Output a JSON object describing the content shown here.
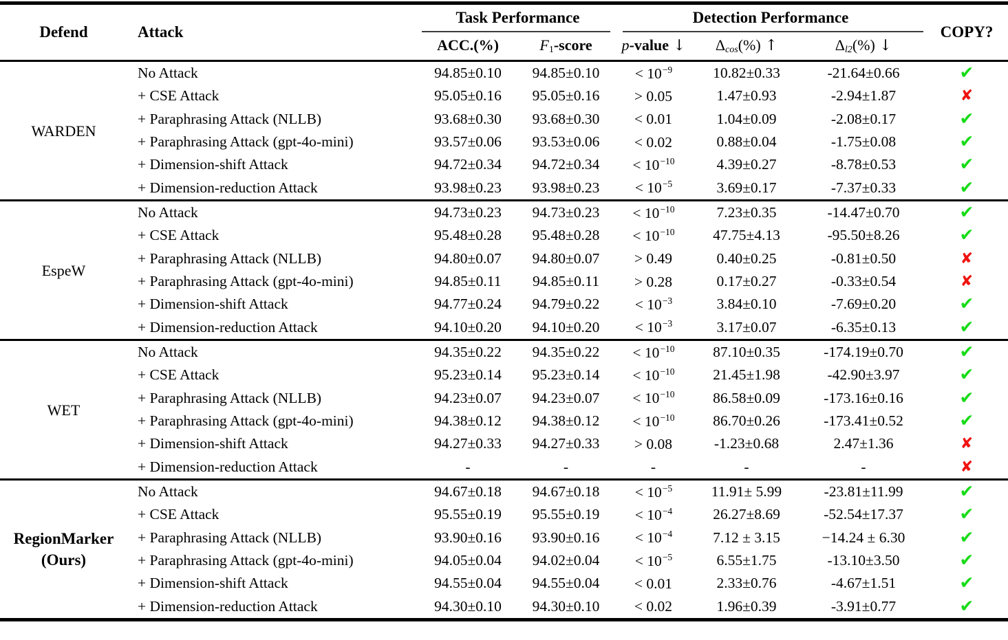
{
  "header": {
    "defend": "Defend",
    "attack": "Attack",
    "task_performance": "Task Performance",
    "detection_performance": "Detection Performance",
    "copy": "COPY?",
    "acc": "ACC.(%)",
    "f1": {
      "sym": "F",
      "sub": "1",
      "rest": "-score"
    },
    "p": {
      "sym": "p",
      "rest": "-value",
      "arrow": "↓"
    },
    "delta_cos": {
      "sym": "Δ",
      "sub": "cos",
      "rest": "(%)",
      "arrow": "↑"
    },
    "delta_l2": {
      "sym": "Δ",
      "sub": "l2",
      "rest": "(%)",
      "arrow": "↓"
    }
  },
  "symbols": {
    "check": "✔",
    "cross": "✘"
  },
  "colors": {
    "check": "#17db17",
    "cross": "#ef1310"
  },
  "groups": [
    {
      "defend": {
        "lines": [
          "WARDEN"
        ],
        "bold": false
      },
      "rows": [
        {
          "attack": "No Attack",
          "acc": "94.85±0.10",
          "f1": "94.85±0.10",
          "p_base": "< 10",
          "p_exp": "−9",
          "dcos": "10.82±0.33",
          "dl2": "-21.64±0.66",
          "copy": "check"
        },
        {
          "attack": "+ CSE Attack",
          "acc": "95.05±0.16",
          "f1": "95.05±0.16",
          "p_base": "> 0.05",
          "p_exp": "",
          "dcos": "1.47±0.93",
          "dl2": "-2.94±1.87",
          "copy": "cross"
        },
        {
          "attack": "+ Paraphrasing Attack (NLLB)",
          "acc": "93.68±0.30",
          "f1": "93.68±0.30",
          "p_base": "< 0.01",
          "p_exp": "",
          "dcos": "1.04±0.09",
          "dl2": "-2.08±0.17",
          "copy": "check"
        },
        {
          "attack": "+ Paraphrasing Attack (gpt-4o-mini)",
          "acc": "93.57±0.06",
          "f1": "93.53±0.06",
          "p_base": "< 0.02",
          "p_exp": "",
          "dcos": "0.88±0.04",
          "dl2": "-1.75±0.08",
          "copy": "check"
        },
        {
          "attack": "+ Dimension-shift Attack",
          "acc": "94.72±0.34",
          "f1": "94.72±0.34",
          "p_base": "< 10",
          "p_exp": "−10",
          "dcos": "4.39±0.27",
          "dl2": "-8.78±0.53",
          "copy": "check"
        },
        {
          "attack": "+ Dimension-reduction Attack",
          "acc": "93.98±0.23",
          "f1": "93.98±0.23",
          "p_base": "< 10",
          "p_exp": "−5",
          "dcos": "3.69±0.17",
          "dl2": "-7.37±0.33",
          "copy": "check"
        }
      ]
    },
    {
      "defend": {
        "lines": [
          "EspeW"
        ],
        "bold": false
      },
      "rows": [
        {
          "attack": "No Attack",
          "acc": "94.73±0.23",
          "f1": "94.73±0.23",
          "p_base": "< 10",
          "p_exp": "−10",
          "dcos": "7.23±0.35",
          "dl2": "-14.47±0.70",
          "copy": "check"
        },
        {
          "attack": "+ CSE Attack",
          "acc": "95.48±0.28",
          "f1": "95.48±0.28",
          "p_base": "< 10",
          "p_exp": "−10",
          "dcos": "47.75±4.13",
          "dl2": "-95.50±8.26",
          "copy": "check"
        },
        {
          "attack": "+ Paraphrasing Attack (NLLB)",
          "acc": "94.80±0.07",
          "f1": "94.80±0.07",
          "p_base": "> 0.49",
          "p_exp": "",
          "dcos": "0.40±0.25",
          "dl2": "-0.81±0.50",
          "copy": "cross"
        },
        {
          "attack": "+ Paraphrasing Attack (gpt-4o-mini)",
          "acc": "94.85±0.11",
          "f1": "94.85±0.11",
          "p_base": "> 0.28",
          "p_exp": "",
          "dcos": "0.17±0.27",
          "dl2": "-0.33±0.54",
          "copy": "cross"
        },
        {
          "attack": "+ Dimension-shift Attack",
          "acc": "94.77±0.24",
          "f1": "94.79±0.22",
          "p_base": "< 10",
          "p_exp": "−3",
          "dcos": "3.84±0.10",
          "dl2": "-7.69±0.20",
          "copy": "check"
        },
        {
          "attack": "+ Dimension-reduction Attack",
          "acc": "94.10±0.20",
          "f1": "94.10±0.20",
          "p_base": "< 10",
          "p_exp": "−3",
          "dcos": "3.17±0.07",
          "dl2": "-6.35±0.13",
          "copy": "check"
        }
      ]
    },
    {
      "defend": {
        "lines": [
          "WET"
        ],
        "bold": false
      },
      "rows": [
        {
          "attack": "No Attack",
          "acc": "94.35±0.22",
          "f1": "94.35±0.22",
          "p_base": "< 10",
          "p_exp": "−10",
          "dcos": "87.10±0.35",
          "dl2": "-174.19±0.70",
          "copy": "check"
        },
        {
          "attack": "+ CSE Attack",
          "acc": "95.23±0.14",
          "f1": "95.23±0.14",
          "p_base": "< 10",
          "p_exp": "−10",
          "dcos": "21.45±1.98",
          "dl2": "-42.90±3.97",
          "copy": "check"
        },
        {
          "attack": "+ Paraphrasing Attack (NLLB)",
          "acc": "94.23±0.07",
          "f1": "94.23±0.07",
          "p_base": "< 10",
          "p_exp": "−10",
          "dcos": "86.58±0.09",
          "dl2": "-173.16±0.16",
          "copy": "check"
        },
        {
          "attack": "+ Paraphrasing Attack (gpt-4o-mini)",
          "acc": "94.38±0.12",
          "f1": "94.38±0.12",
          "p_base": "< 10",
          "p_exp": "−10",
          "dcos": "86.70±0.26",
          "dl2": "-173.41±0.52",
          "copy": "check"
        },
        {
          "attack": "+ Dimension-shift Attack",
          "acc": "94.27±0.33",
          "f1": "94.27±0.33",
          "p_base": "> 0.08",
          "p_exp": "",
          "dcos": "-1.23±0.68",
          "dl2": "2.47±1.36",
          "copy": "cross"
        },
        {
          "attack": "+ Dimension-reduction Attack",
          "acc": "-",
          "f1": "-",
          "p_base": "-",
          "p_exp": "",
          "dcos": "-",
          "dl2": "-",
          "copy": "cross"
        }
      ]
    },
    {
      "defend": {
        "lines": [
          "RegionMarker",
          "(Ours)"
        ],
        "bold": true
      },
      "rows": [
        {
          "attack": "No Attack",
          "acc": "94.67±0.18",
          "f1": "94.67±0.18",
          "p_base": "< 10",
          "p_exp": "−5",
          "dcos": "11.91± 5.99",
          "dl2": "-23.81±11.99",
          "copy": "check"
        },
        {
          "attack": "+ CSE Attack",
          "acc": "95.55±0.19",
          "f1": "95.55±0.19",
          "p_base": "< 10",
          "p_exp": "−4",
          "dcos": "26.27±8.69",
          "dl2": "-52.54±17.37",
          "copy": "check"
        },
        {
          "attack": "+ Paraphrasing Attack (NLLB)",
          "acc": "93.90±0.16",
          "f1": "93.90±0.16",
          "p_base": "< 10",
          "p_exp": "−4",
          "dcos": "7.12 ± 3.15",
          "dl2": "−14.24 ± 6.30",
          "copy": "check"
        },
        {
          "attack": "+ Paraphrasing Attack (gpt-4o-mini)",
          "acc": "94.05±0.04",
          "f1": "94.02±0.04",
          "p_base": "< 10",
          "p_exp": "−5",
          "dcos": "6.55±1.75",
          "dl2": "-13.10±3.50",
          "copy": "check"
        },
        {
          "attack": "+ Dimension-shift Attack",
          "acc": "94.55±0.04",
          "f1": "94.55±0.04",
          "p_base": "< 0.01",
          "p_exp": "",
          "dcos": "2.33±0.76",
          "dl2": "-4.67±1.51",
          "copy": "check"
        },
        {
          "attack": "+ Dimension-reduction Attack",
          "acc": "94.30±0.10",
          "f1": "94.30±0.10",
          "p_base": "< 0.02",
          "p_exp": "",
          "dcos": "1.96±0.39",
          "dl2": "-3.91±0.77",
          "copy": "check"
        }
      ]
    }
  ]
}
